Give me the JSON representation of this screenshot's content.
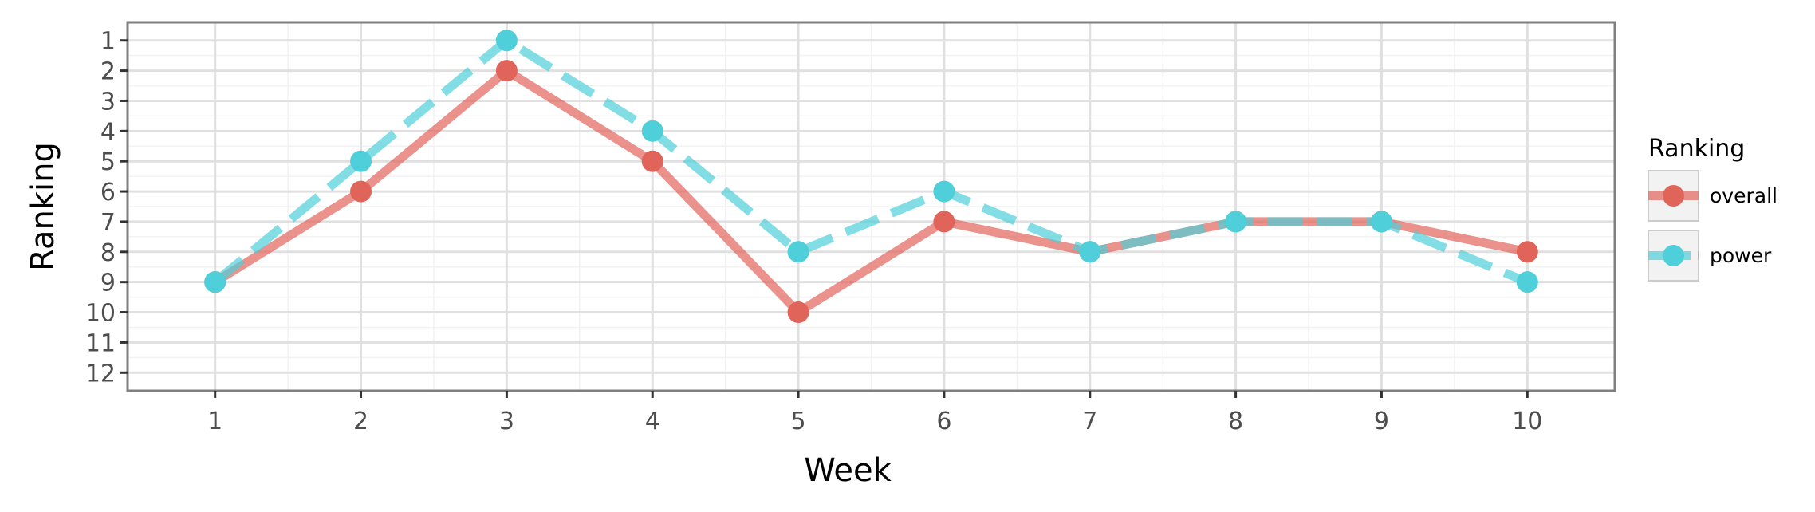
{
  "chart_data": {
    "type": "line",
    "xlabel": "Week",
    "ylabel": "Ranking",
    "x": [
      1,
      2,
      3,
      4,
      5,
      6,
      7,
      8,
      9,
      10
    ],
    "xlim": [
      0.4,
      10.6
    ],
    "ylim": [
      12.6,
      0.4
    ],
    "y_reversed": true,
    "y_ticks": [
      1,
      2,
      3,
      4,
      5,
      6,
      7,
      8,
      9,
      10,
      11,
      12
    ],
    "grid": true,
    "legend": {
      "title": "Ranking",
      "position": "right"
    },
    "series": [
      {
        "name": "overall",
        "values": [
          9,
          6,
          2,
          5,
          10,
          7,
          8,
          7,
          7,
          8
        ],
        "color": "#e1645a",
        "dash": "solid"
      },
      {
        "name": "power",
        "values": [
          9,
          5,
          1,
          4,
          8,
          6,
          8,
          7,
          7,
          9
        ],
        "color": "#4fcfd9",
        "dash": "dashed"
      }
    ]
  }
}
